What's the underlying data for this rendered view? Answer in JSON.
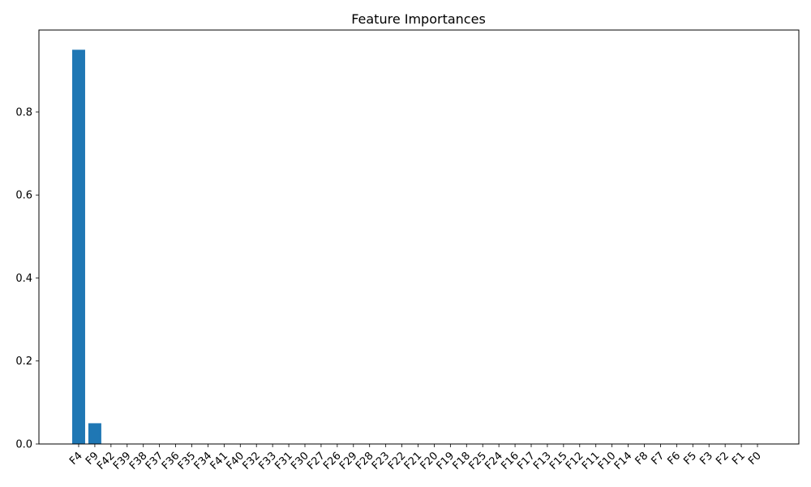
{
  "chart_data": {
    "type": "bar",
    "title": "Feature Importances",
    "xlabel": "",
    "ylabel": "",
    "categories": [
      "F4",
      "F9",
      "F42",
      "F39",
      "F38",
      "F37",
      "F36",
      "F35",
      "F34",
      "F41",
      "F40",
      "F32",
      "F33",
      "F31",
      "F30",
      "F27",
      "F26",
      "F29",
      "F28",
      "F23",
      "F22",
      "F21",
      "F20",
      "F19",
      "F18",
      "F25",
      "F24",
      "F16",
      "F17",
      "F13",
      "F15",
      "F12",
      "F11",
      "F10",
      "F14",
      "F8",
      "F7",
      "F6",
      "F5",
      "F3",
      "F2",
      "F1",
      "F0"
    ],
    "values": [
      0.95,
      0.05,
      0,
      0,
      0,
      0,
      0,
      0,
      0,
      0,
      0,
      0,
      0,
      0,
      0,
      0,
      0,
      0,
      0,
      0,
      0,
      0,
      0,
      0,
      0,
      0,
      0,
      0,
      0,
      0,
      0,
      0,
      0,
      0,
      0,
      0,
      0,
      0,
      0,
      0,
      0,
      0,
      0
    ],
    "ylim": [
      0,
      0.9975
    ],
    "yticks": [
      0.0,
      0.2,
      0.4,
      0.6,
      0.8
    ],
    "ytick_labels": [
      "0.0",
      "0.2",
      "0.4",
      "0.6",
      "0.8"
    ],
    "grid": false,
    "bar_color": "#1f77b4"
  }
}
